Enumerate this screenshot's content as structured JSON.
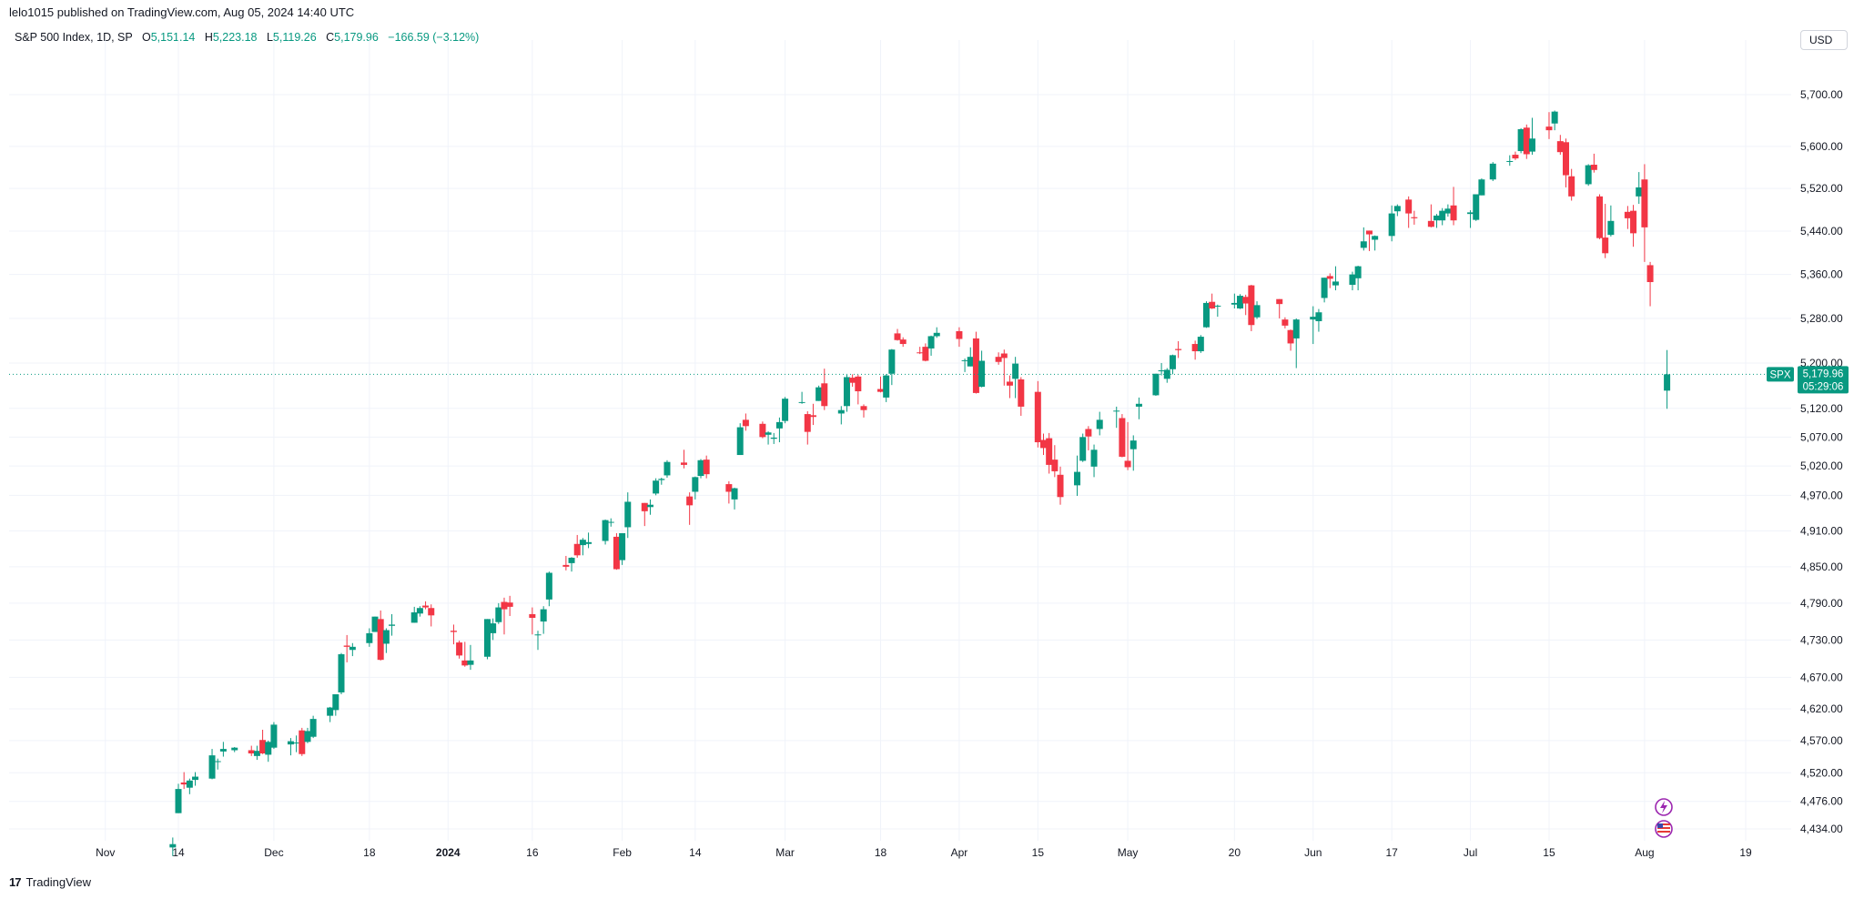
{
  "header": {
    "published_line": "lelo1015 published on TradingView.com, Aug 05, 2024 14:40 UTC"
  },
  "legend": {
    "symbol": "S&P 500 Index, 1D, SP",
    "open_label": "O",
    "open": "5,151.14",
    "high_label": "H",
    "high": "5,223.18",
    "low_label": "L",
    "low": "5,119.26",
    "close_label": "C",
    "close": "5,179.96",
    "change": "−166.59 (−3.12%)"
  },
  "currency_button": "USD",
  "price_tag": {
    "symbol": "SPX",
    "price": "5,179.96",
    "countdown": "05:29:06"
  },
  "footer": {
    "brand": "TradingView",
    "logo_icon": "tradingview-logo-icon"
  },
  "event_icons": [
    "lightning-event-icon",
    "us-flag-event-icon"
  ],
  "colors": {
    "up": "#089981",
    "down": "#f23645",
    "grid": "#f0f3fa",
    "last_price_line": "#089981"
  },
  "chart_data": {
    "type": "candlestick",
    "title": "S&P 500 Index, 1D, SP",
    "y_scale": "log",
    "grid": true,
    "y_ticks": [
      "5,700.00",
      "5,600.00",
      "5,520.00",
      "5,440.00",
      "5,360.00",
      "5,280.00",
      "5,200.00",
      "5,120.00",
      "5,070.00",
      "5,020.00",
      "4,970.00",
      "4,910.00",
      "4,850.00",
      "4,790.00",
      "4,730.00",
      "4,670.00",
      "4,620.00",
      "4,570.00",
      "4,520.00",
      "4,476.00",
      "4,434.00"
    ],
    "x_ticks": [
      {
        "label": "Nov",
        "date": "2023-11-01"
      },
      {
        "label": "14",
        "date": "2023-11-14"
      },
      {
        "label": "Dec",
        "date": "2023-12-01"
      },
      {
        "label": "18",
        "date": "2023-12-18"
      },
      {
        "label": "2024",
        "date": "2024-01-01",
        "bold": true
      },
      {
        "label": "16",
        "date": "2024-01-16"
      },
      {
        "label": "Feb",
        "date": "2024-02-01"
      },
      {
        "label": "14",
        "date": "2024-02-14"
      },
      {
        "label": "Mar",
        "date": "2024-03-01"
      },
      {
        "label": "18",
        "date": "2024-03-18"
      },
      {
        "label": "Apr",
        "date": "2024-04-01"
      },
      {
        "label": "15",
        "date": "2024-04-15"
      },
      {
        "label": "May",
        "date": "2024-05-01"
      },
      {
        "label": "20",
        "date": "2024-05-20"
      },
      {
        "label": "Jun",
        "date": "2024-06-03"
      },
      {
        "label": "17",
        "date": "2024-06-17"
      },
      {
        "label": "Jul",
        "date": "2024-07-01"
      },
      {
        "label": "15",
        "date": "2024-07-15"
      },
      {
        "label": "Aug",
        "date": "2024-08-01"
      },
      {
        "label": "19",
        "date": "2024-08-19"
      }
    ],
    "last_price": 5179.96,
    "ohlc": [
      [
        "2023-11-13",
        4406,
        4421,
        4393,
        4411
      ],
      [
        "2023-11-14",
        4458,
        4503,
        4458,
        4495
      ],
      [
        "2023-11-15",
        4505,
        4521,
        4495,
        4502
      ],
      [
        "2023-11-16",
        4497,
        4511,
        4487,
        4508
      ],
      [
        "2023-11-17",
        4509,
        4521,
        4500,
        4514
      ],
      [
        "2023-11-20",
        4511,
        4557,
        4510,
        4547
      ],
      [
        "2023-11-21",
        4538,
        4542,
        4525,
        4538
      ],
      [
        "2023-11-22",
        4553,
        4568,
        4545,
        4557
      ],
      [
        "2023-11-24",
        4555,
        4560,
        4552,
        4559
      ],
      [
        "2023-11-27",
        4555,
        4562,
        4546,
        4550
      ],
      [
        "2023-11-28",
        4546,
        4562,
        4540,
        4554
      ],
      [
        "2023-11-29",
        4571,
        4587,
        4549,
        4550
      ],
      [
        "2023-11-30",
        4548,
        4570,
        4537,
        4568
      ],
      [
        "2023-12-01",
        4559,
        4599,
        4557,
        4595
      ],
      [
        "2023-12-04",
        4564,
        4574,
        4547,
        4569
      ],
      [
        "2023-12-05",
        4567,
        4578,
        4552,
        4567
      ],
      [
        "2023-12-06",
        4586,
        4590,
        4546,
        4549
      ],
      [
        "2023-12-07",
        4568,
        4590,
        4566,
        4585
      ],
      [
        "2023-12-08",
        4576,
        4609,
        4574,
        4604
      ],
      [
        "2023-12-11",
        4609,
        4623,
        4599,
        4622
      ],
      [
        "2023-12-12",
        4618,
        4643,
        4609,
        4643
      ],
      [
        "2023-12-13",
        4646,
        4709,
        4643,
        4707
      ],
      [
        "2023-12-14",
        4721,
        4738,
        4694,
        4719
      ],
      [
        "2023-12-15",
        4714,
        4725,
        4704,
        4719
      ],
      [
        "2023-12-18",
        4725,
        4749,
        4719,
        4741
      ],
      [
        "2023-12-19",
        4743,
        4768,
        4743,
        4768
      ],
      [
        "2023-12-20",
        4764,
        4778,
        4697,
        4698
      ],
      [
        "2023-12-21",
        4724,
        4749,
        4709,
        4746
      ],
      [
        "2023-12-22",
        4753,
        4772,
        4737,
        4755
      ],
      [
        "2023-12-26",
        4758,
        4784,
        4758,
        4775
      ],
      [
        "2023-12-27",
        4773,
        4785,
        4768,
        4782
      ],
      [
        "2023-12-28",
        4786,
        4793,
        4780,
        4783
      ],
      [
        "2023-12-29",
        4782,
        4788,
        4752,
        4770
      ],
      [
        "2024-01-02",
        4745,
        4755,
        4723,
        4743
      ],
      [
        "2024-01-03",
        4726,
        4729,
        4700,
        4705
      ],
      [
        "2024-01-04",
        4697,
        4727,
        4687,
        4689
      ],
      [
        "2024-01-05",
        4690,
        4722,
        4682,
        4697
      ],
      [
        "2024-01-08",
        4703,
        4764,
        4699,
        4764
      ],
      [
        "2024-01-09",
        4741,
        4765,
        4730,
        4757
      ],
      [
        "2024-01-10",
        4759,
        4790,
        4756,
        4783
      ],
      [
        "2024-01-11",
        4792,
        4799,
        4739,
        4780
      ],
      [
        "2024-01-12",
        4791,
        4802,
        4769,
        4784
      ],
      [
        "2024-01-16",
        4772,
        4783,
        4739,
        4766
      ],
      [
        "2024-01-17",
        4739,
        4745,
        4714,
        4739
      ],
      [
        "2024-01-18",
        4760,
        4785,
        4740,
        4780
      ],
      [
        "2024-01-19",
        4796,
        4842,
        4785,
        4840
      ],
      [
        "2024-01-22",
        4853,
        4868,
        4844,
        4850
      ],
      [
        "2024-01-23",
        4856,
        4866,
        4842,
        4865
      ],
      [
        "2024-01-24",
        4888,
        4903,
        4865,
        4869
      ],
      [
        "2024-01-25",
        4886,
        4898,
        4869,
        4895
      ],
      [
        "2024-01-26",
        4888,
        4907,
        4881,
        4891
      ],
      [
        "2024-01-29",
        4893,
        4929,
        4887,
        4928
      ],
      [
        "2024-01-30",
        4925,
        4931,
        4917,
        4925
      ],
      [
        "2024-01-31",
        4900,
        4906,
        4845,
        4846
      ],
      [
        "2024-02-01",
        4861,
        4906,
        4853,
        4906
      ],
      [
        "2024-02-02",
        4916,
        4975,
        4898,
        4959
      ],
      [
        "2024-02-05",
        4957,
        4957,
        4918,
        4943
      ],
      [
        "2024-02-06",
        4950,
        4963,
        4937,
        4954
      ],
      [
        "2024-02-07",
        4973,
        4999,
        4970,
        4995
      ],
      [
        "2024-02-08",
        4996,
        5000,
        4988,
        4998
      ],
      [
        "2024-02-09",
        5004,
        5030,
        5000,
        5027
      ],
      [
        "2024-02-12",
        5026,
        5048,
        5016,
        5022
      ],
      [
        "2024-02-13",
        4968,
        4975,
        4920,
        4953
      ],
      [
        "2024-02-14",
        4976,
        5002,
        4963,
        5001
      ],
      [
        "2024-02-15",
        5003,
        5032,
        4999,
        5030
      ],
      [
        "2024-02-16",
        5031,
        5038,
        4999,
        5006
      ],
      [
        "2024-02-20",
        4989,
        4994,
        4956,
        4976
      ],
      [
        "2024-02-21",
        4963,
        4983,
        4946,
        4982
      ],
      [
        "2024-02-22",
        5039,
        5094,
        5039,
        5087
      ],
      [
        "2024-02-23",
        5100,
        5111,
        5081,
        5089
      ],
      [
        "2024-02-26",
        5093,
        5097,
        5068,
        5070
      ],
      [
        "2024-02-27",
        5074,
        5080,
        5057,
        5078
      ],
      [
        "2024-02-28",
        5067,
        5077,
        5058,
        5069
      ],
      [
        "2024-02-29",
        5085,
        5104,
        5061,
        5096
      ],
      [
        "2024-03-01",
        5098,
        5140,
        5094,
        5137
      ],
      [
        "2024-03-04",
        5131,
        5149,
        5128,
        5131
      ],
      [
        "2024-03-05",
        5110,
        5115,
        5057,
        5079
      ],
      [
        "2024-03-06",
        5108,
        5128,
        5091,
        5105
      ],
      [
        "2024-03-07",
        5133,
        5160,
        5133,
        5157
      ],
      [
        "2024-03-08",
        5164,
        5190,
        5117,
        5124
      ],
      [
        "2024-03-11",
        5111,
        5124,
        5092,
        5117
      ],
      [
        "2024-03-12",
        5124,
        5179,
        5114,
        5175
      ],
      [
        "2024-03-13",
        5174,
        5180,
        5158,
        5165
      ],
      [
        "2024-03-14",
        5176,
        5179,
        5127,
        5150
      ],
      [
        "2024-03-15",
        5124,
        5127,
        5104,
        5117
      ],
      [
        "2024-03-18",
        5154,
        5176,
        5148,
        5149
      ],
      [
        "2024-03-19",
        5139,
        5180,
        5131,
        5178
      ],
      [
        "2024-03-20",
        5181,
        5225,
        5161,
        5224
      ],
      [
        "2024-03-21",
        5253,
        5261,
        5240,
        5241
      ],
      [
        "2024-03-22",
        5242,
        5246,
        5229,
        5234
      ],
      [
        "2024-03-25",
        5219,
        5229,
        5216,
        5218
      ],
      [
        "2024-03-26",
        5229,
        5235,
        5203,
        5204
      ],
      [
        "2024-03-27",
        5226,
        5249,
        5213,
        5248
      ],
      [
        "2024-03-28",
        5248,
        5264,
        5245,
        5254
      ],
      [
        "2024-04-01",
        5257,
        5264,
        5229,
        5243
      ],
      [
        "2024-04-02",
        5204,
        5208,
        5184,
        5205
      ],
      [
        "2024-04-03",
        5194,
        5228,
        5194,
        5211
      ],
      [
        "2024-04-04",
        5244,
        5256,
        5146,
        5147
      ],
      [
        "2024-04-05",
        5158,
        5222,
        5157,
        5204
      ],
      [
        "2024-04-08",
        5211,
        5219,
        5197,
        5202
      ],
      [
        "2024-04-09",
        5217,
        5224,
        5160,
        5209
      ],
      [
        "2024-04-10",
        5167,
        5178,
        5138,
        5160
      ],
      [
        "2024-04-11",
        5172,
        5211,
        5138,
        5199
      ],
      [
        "2024-04-12",
        5171,
        5175,
        5107,
        5123
      ],
      [
        "2024-04-15",
        5149,
        5168,
        5052,
        5061
      ],
      [
        "2024-04-16",
        5065,
        5076,
        5039,
        5051
      ],
      [
        "2024-04-17",
        5068,
        5077,
        5007,
        5022
      ],
      [
        "2024-04-18",
        5031,
        5056,
        5001,
        5011
      ],
      [
        "2024-04-19",
        5005,
        5019,
        4954,
        4967
      ],
      [
        "2024-04-22",
        4987,
        5038,
        4969,
        5010
      ],
      [
        "2024-04-23",
        5029,
        5076,
        5027,
        5070
      ],
      [
        "2024-04-24",
        5084,
        5089,
        5047,
        5071
      ],
      [
        "2024-04-25",
        5019,
        5057,
        5001,
        5048
      ],
      [
        "2024-04-26",
        5084,
        5114,
        5073,
        5100
      ],
      [
        "2024-04-29",
        5115,
        5123,
        5086,
        5116
      ],
      [
        "2024-04-30",
        5103,
        5110,
        5035,
        5036
      ],
      [
        "2024-05-01",
        5029,
        5096,
        5013,
        5018
      ],
      [
        "2024-05-02",
        5049,
        5073,
        5012,
        5064
      ],
      [
        "2024-05-03",
        5123,
        5139,
        5101,
        5128
      ],
      [
        "2024-05-06",
        5143,
        5181,
        5142,
        5181
      ],
      [
        "2024-05-07",
        5187,
        5200,
        5178,
        5187
      ],
      [
        "2024-05-08",
        5172,
        5191,
        5165,
        5188
      ],
      [
        "2024-05-09",
        5189,
        5215,
        5180,
        5214
      ],
      [
        "2024-05-10",
        5225,
        5239,
        5209,
        5223
      ],
      [
        "2024-05-13",
        5234,
        5240,
        5206,
        5221
      ],
      [
        "2024-05-14",
        5221,
        5250,
        5218,
        5247
      ],
      [
        "2024-05-15",
        5264,
        5311,
        5263,
        5308
      ],
      [
        "2024-05-16",
        5310,
        5325,
        5297,
        5298
      ],
      [
        "2024-05-17",
        5303,
        5305,
        5283,
        5303
      ],
      [
        "2024-05-20",
        5305,
        5325,
        5298,
        5308
      ],
      [
        "2024-05-21",
        5298,
        5324,
        5297,
        5321
      ],
      [
        "2024-05-22",
        5319,
        5323,
        5286,
        5307
      ],
      [
        "2024-05-23",
        5340,
        5341,
        5257,
        5268
      ],
      [
        "2024-05-24",
        5282,
        5311,
        5279,
        5304
      ],
      [
        "2024-05-28",
        5315,
        5315,
        5280,
        5306
      ],
      [
        "2024-05-29",
        5278,
        5282,
        5262,
        5267
      ],
      [
        "2024-05-30",
        5259,
        5260,
        5222,
        5235
      ],
      [
        "2024-05-31",
        5244,
        5280,
        5191,
        5278
      ],
      [
        "2024-06-03",
        5278,
        5302,
        5234,
        5283
      ],
      [
        "2024-06-04",
        5275,
        5297,
        5256,
        5291
      ],
      [
        "2024-06-05",
        5317,
        5354,
        5309,
        5354
      ],
      [
        "2024-06-06",
        5357,
        5362,
        5335,
        5352
      ],
      [
        "2024-06-07",
        5340,
        5375,
        5331,
        5347
      ],
      [
        "2024-06-10",
        5341,
        5365,
        5331,
        5360
      ],
      [
        "2024-06-11",
        5353,
        5376,
        5331,
        5375
      ],
      [
        "2024-06-12",
        5409,
        5447,
        5404,
        5421
      ],
      [
        "2024-06-13",
        5441,
        5441,
        5403,
        5434
      ],
      [
        "2024-06-14",
        5424,
        5432,
        5404,
        5431
      ],
      [
        "2024-06-17",
        5431,
        5488,
        5421,
        5473
      ],
      [
        "2024-06-18",
        5477,
        5490,
        5468,
        5487
      ],
      [
        "2024-06-20",
        5499,
        5505,
        5446,
        5473
      ],
      [
        "2024-06-21",
        5466,
        5478,
        5452,
        5464
      ],
      [
        "2024-06-24",
        5459,
        5490,
        5447,
        5448
      ],
      [
        "2024-06-25",
        5460,
        5472,
        5446,
        5469
      ],
      [
        "2024-06-26",
        5460,
        5483,
        5451,
        5478
      ],
      [
        "2024-06-27",
        5473,
        5490,
        5467,
        5482
      ],
      [
        "2024-06-28",
        5488,
        5523,
        5451,
        5460
      ],
      [
        "2024-07-01",
        5472,
        5479,
        5446,
        5475
      ],
      [
        "2024-07-02",
        5461,
        5509,
        5459,
        5509
      ],
      [
        "2024-07-03",
        5507,
        5539,
        5507,
        5537
      ],
      [
        "2024-07-05",
        5537,
        5570,
        5534,
        5567
      ],
      [
        "2024-07-08",
        5572,
        5583,
        5563,
        5572
      ],
      [
        "2024-07-09",
        5584,
        5590,
        5574,
        5577
      ],
      [
        "2024-07-10",
        5591,
        5635,
        5587,
        5633
      ],
      [
        "2024-07-11",
        5636,
        5642,
        5576,
        5585
      ],
      [
        "2024-07-12",
        5590,
        5655,
        5584,
        5615
      ],
      [
        "2024-07-15",
        5638,
        5666,
        5614,
        5631
      ],
      [
        "2024-07-16",
        5644,
        5669,
        5631,
        5667
      ],
      [
        "2024-07-17",
        5610,
        5622,
        5584,
        5589
      ],
      [
        "2024-07-18",
        5608,
        5615,
        5522,
        5545
      ],
      [
        "2024-07-19",
        5543,
        5557,
        5497,
        5505
      ],
      [
        "2024-07-22",
        5528,
        5566,
        5525,
        5564
      ],
      [
        "2024-07-23",
        5565,
        5586,
        5550,
        5555
      ],
      [
        "2024-07-24",
        5505,
        5509,
        5425,
        5427
      ],
      [
        "2024-07-25",
        5428,
        5491,
        5390,
        5399
      ],
      [
        "2024-07-26",
        5433,
        5488,
        5430,
        5459
      ],
      [
        "2024-07-29",
        5476,
        5487,
        5444,
        5464
      ],
      [
        "2024-07-30",
        5478,
        5489,
        5411,
        5436
      ],
      [
        "2024-07-31",
        5505,
        5551,
        5491,
        5522
      ],
      [
        "2024-08-01",
        5537,
        5566,
        5383,
        5447
      ],
      [
        "2024-08-02",
        5377,
        5383,
        5302,
        5346
      ],
      [
        "2024-08-05",
        5151.14,
        5223.18,
        5119.26,
        5179.96
      ]
    ]
  }
}
